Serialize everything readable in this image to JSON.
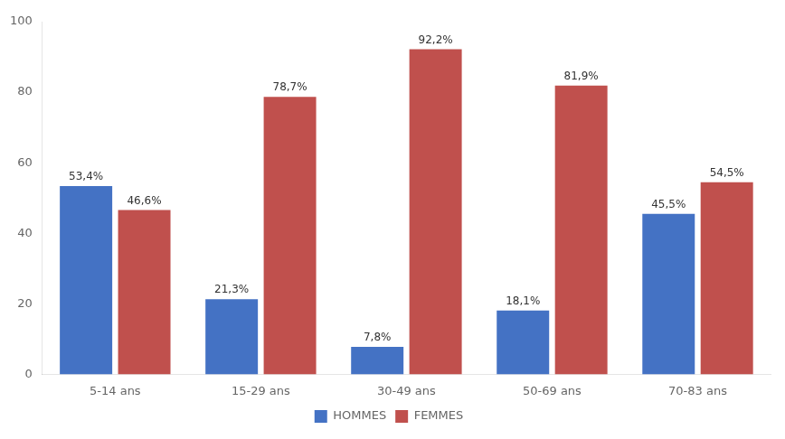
{
  "chart_data": {
    "type": "bar",
    "categories": [
      "5-14 ans",
      "15-29 ans",
      "30-49 ans",
      "50-69 ans",
      "70-83 ans"
    ],
    "series": [
      {
        "name": "HOMMES",
        "color": "#4472C4",
        "values": [
          53.4,
          21.3,
          7.8,
          18.1,
          45.5
        ],
        "value_labels": [
          "53,4%",
          "21,3%",
          "7,8%",
          "18,1%",
          "45,5%"
        ]
      },
      {
        "name": "FEMMES",
        "color": "#C0504D",
        "values": [
          46.6,
          78.7,
          92.2,
          81.9,
          54.5
        ],
        "value_labels": [
          "46,6%",
          "78,7%",
          "92,2%",
          "81,9%",
          "54,5%"
        ]
      }
    ],
    "ylim": [
      0,
      100
    ],
    "yticks": [
      0,
      20,
      40,
      60,
      80,
      100
    ],
    "grid": false,
    "legend": "bottom",
    "data_labels": true
  }
}
